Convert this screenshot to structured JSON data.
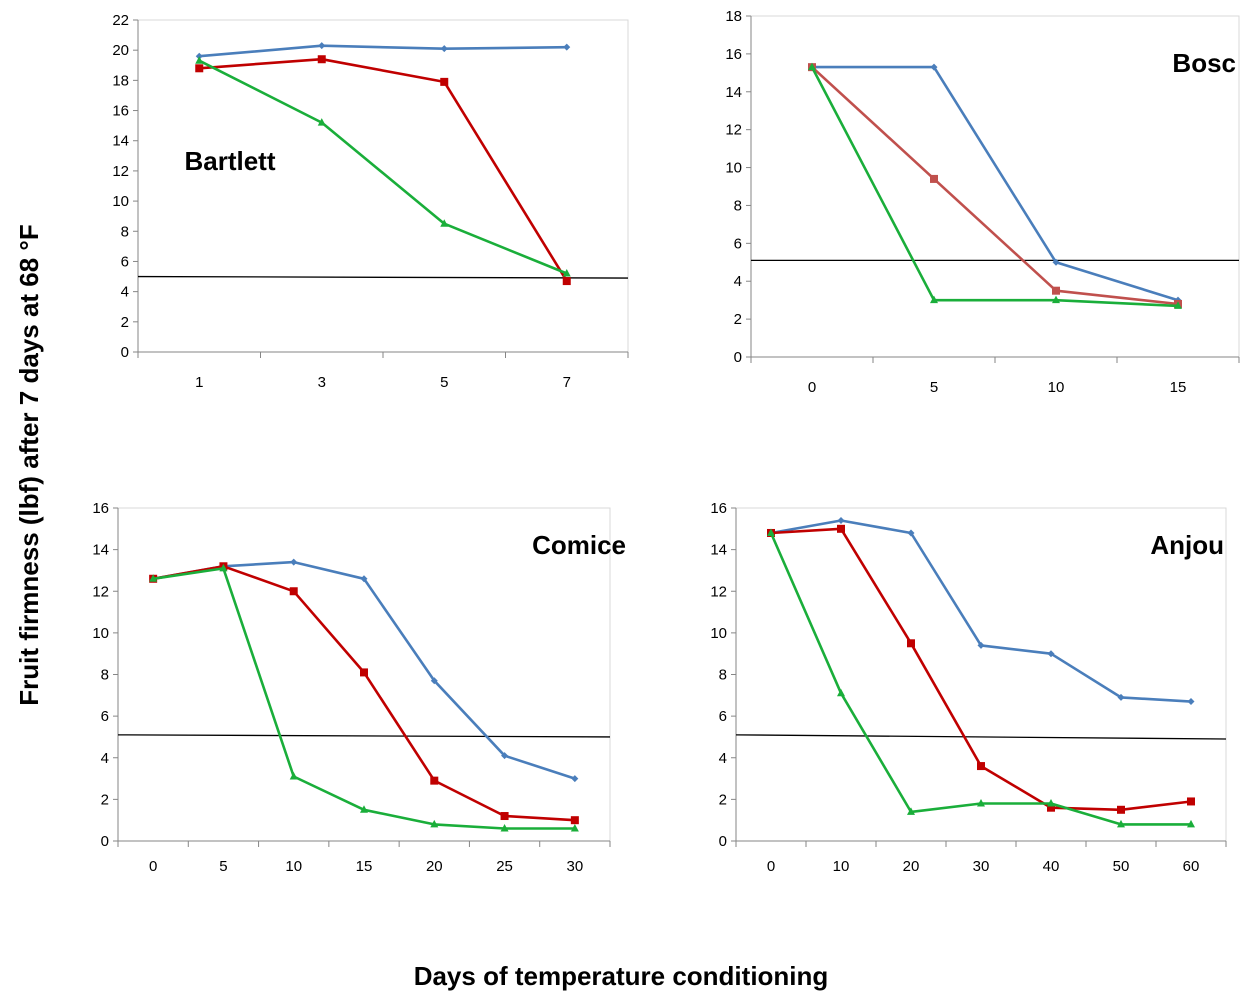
{
  "ylabel": "Fruit firmness (lbf) after 7 days at 68 °F",
  "xlabel": "Days of temperature conditioning",
  "colors": {
    "blue": "#4a7ebb",
    "red": "#c00000",
    "bosc_red": "#c0504d",
    "green": "#1aae3a",
    "threshold": "#000000"
  },
  "chart_data": [
    {
      "type": "line",
      "label": "Bartlett",
      "categories": [
        "1",
        "3",
        "5",
        "7"
      ],
      "ylim": [
        0,
        22
      ],
      "yticks": [
        0,
        2,
        4,
        6,
        8,
        10,
        12,
        14,
        16,
        18,
        20,
        22
      ],
      "threshold": [
        5.0,
        4.9
      ],
      "series": [
        {
          "color": "blue",
          "marker": "diamond",
          "values": [
            19.6,
            20.3,
            20.1,
            20.2
          ]
        },
        {
          "color": "red",
          "marker": "square",
          "values": [
            18.8,
            19.4,
            17.9,
            4.7
          ]
        },
        {
          "color": "green",
          "marker": "triangle",
          "values": [
            19.3,
            15.2,
            8.5,
            5.2
          ]
        }
      ]
    },
    {
      "type": "line",
      "label": "Bosc",
      "categories": [
        "0",
        "5",
        "10",
        "15"
      ],
      "ylim": [
        0,
        18
      ],
      "yticks": [
        0,
        2,
        4,
        6,
        8,
        10,
        12,
        14,
        16,
        18
      ],
      "threshold": [
        5.1,
        5.1
      ],
      "series": [
        {
          "color": "blue",
          "marker": "diamond",
          "values": [
            15.3,
            15.3,
            5.0,
            3.0
          ]
        },
        {
          "color": "bosc_red",
          "marker": "square",
          "values": [
            15.3,
            9.4,
            3.5,
            2.8
          ]
        },
        {
          "color": "green",
          "marker": "triangle",
          "values": [
            15.3,
            3.0,
            3.0,
            2.7
          ]
        }
      ]
    },
    {
      "type": "line",
      "label": "Comice",
      "categories": [
        "0",
        "5",
        "10",
        "15",
        "20",
        "25",
        "30"
      ],
      "ylim": [
        0,
        16
      ],
      "yticks": [
        0,
        2,
        4,
        6,
        8,
        10,
        12,
        14,
        16
      ],
      "threshold": [
        5.1,
        5.0
      ],
      "series": [
        {
          "color": "blue",
          "marker": "diamond",
          "values": [
            12.6,
            13.2,
            13.4,
            12.6,
            7.7,
            4.1,
            3.0
          ]
        },
        {
          "color": "red",
          "marker": "square",
          "values": [
            12.6,
            13.2,
            12.0,
            8.1,
            2.9,
            1.2,
            1.0
          ]
        },
        {
          "color": "green",
          "marker": "triangle",
          "values": [
            12.6,
            13.1,
            3.1,
            1.5,
            0.8,
            0.6,
            0.6
          ]
        }
      ]
    },
    {
      "type": "line",
      "label": "Anjou",
      "categories": [
        "0",
        "10",
        "20",
        "30",
        "40",
        "50",
        "60"
      ],
      "ylim": [
        0,
        16
      ],
      "yticks": [
        0,
        2,
        4,
        6,
        8,
        10,
        12,
        14,
        16
      ],
      "threshold": [
        5.1,
        4.9
      ],
      "series": [
        {
          "color": "blue",
          "marker": "diamond",
          "values": [
            14.8,
            15.4,
            14.8,
            9.4,
            9.0,
            6.9,
            6.7
          ]
        },
        {
          "color": "red",
          "marker": "square",
          "values": [
            14.8,
            15.0,
            9.5,
            3.6,
            1.6,
            1.5,
            1.9
          ]
        },
        {
          "color": "green",
          "marker": "triangle",
          "values": [
            14.8,
            7.1,
            1.4,
            1.8,
            1.8,
            0.8,
            0.8
          ]
        }
      ]
    }
  ]
}
